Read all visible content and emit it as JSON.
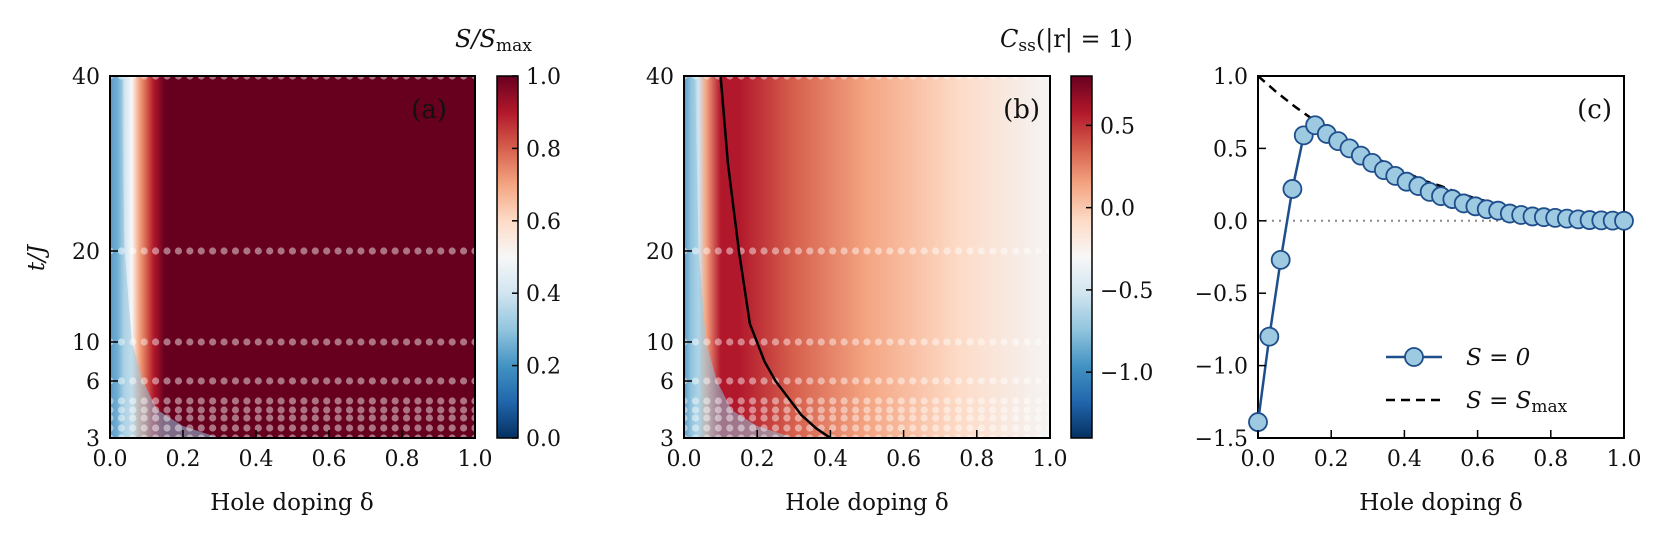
{
  "chart_data": [
    {
      "panel": "(a)",
      "type": "heatmap",
      "xlabel": "Hole doping δ",
      "ylabel": "t/J",
      "xlim": [
        0,
        1
      ],
      "ylim": [
        3,
        40
      ],
      "x_ticks": [
        "0.0",
        "0.2",
        "0.4",
        "0.6",
        "0.8",
        "1.0"
      ],
      "y_ticks": [
        "3",
        "6",
        "10",
        "20",
        "40"
      ],
      "colorbar": {
        "title": "S/S_max",
        "cmap": "RdBu_r",
        "range": [
          0,
          1
        ],
        "ticks": [
          "0.0",
          "0.2",
          "0.4",
          "0.6",
          "0.8",
          "1.0"
        ]
      },
      "sample_rows_tJ": [
        3,
        3.5,
        4,
        4.5,
        5,
        6,
        10,
        20,
        40
      ]
    },
    {
      "panel": "(b)",
      "type": "heatmap",
      "xlabel": "Hole doping δ",
      "ylabel": "",
      "xlim": [
        0,
        1
      ],
      "ylim": [
        3,
        40
      ],
      "x_ticks": [
        "0.0",
        "0.2",
        "0.4",
        "0.6",
        "0.8",
        "1.0"
      ],
      "y_ticks": [
        "3",
        "6",
        "10",
        "20",
        "40"
      ],
      "colorbar": {
        "title": "C_ss(|r| = 1)",
        "cmap": "RdBu_r",
        "range": [
          -1.4,
          0.8
        ],
        "ticks": [
          "0.5",
          "0.0",
          "−0.5",
          "−1.0"
        ]
      },
      "boundary_line": {
        "x": [
          0.4,
          0.36,
          0.32,
          0.25,
          0.22,
          0.18,
          0.15,
          0.12,
          0.1
        ],
        "y": [
          3,
          3.5,
          4.2,
          6,
          8,
          12,
          20,
          30,
          40
        ]
      },
      "sample_rows_tJ": [
        3,
        3.5,
        4,
        4.5,
        5,
        6,
        10,
        20,
        40
      ]
    },
    {
      "panel": "(c)",
      "type": "line",
      "xlabel": "Hole doping δ",
      "ylabel": "",
      "xlim": [
        0,
        1
      ],
      "ylim": [
        -1.5,
        1
      ],
      "x_ticks": [
        "0.0",
        "0.2",
        "0.4",
        "0.6",
        "0.8",
        "1.0"
      ],
      "y_ticks": [
        "1.0",
        "0.5",
        "0.0",
        "−0.5",
        "−1.0",
        "−1.5"
      ],
      "series": [
        {
          "name": "S = 0",
          "style": "solid-markers",
          "color": "#1f4e8c",
          "x": [
            0.0,
            0.031,
            0.062,
            0.094,
            0.125,
            0.156,
            0.188,
            0.219,
            0.25,
            0.281,
            0.312,
            0.344,
            0.375,
            0.406,
            0.438,
            0.469,
            0.5,
            0.531,
            0.562,
            0.594,
            0.625,
            0.656,
            0.688,
            0.719,
            0.75,
            0.781,
            0.812,
            0.844,
            0.875,
            0.906,
            0.938,
            0.969,
            1.0
          ],
          "y": [
            -1.39,
            -0.8,
            -0.27,
            0.22,
            0.59,
            0.66,
            0.6,
            0.55,
            0.5,
            0.45,
            0.4,
            0.35,
            0.31,
            0.27,
            0.24,
            0.2,
            0.17,
            0.15,
            0.12,
            0.1,
            0.08,
            0.07,
            0.05,
            0.04,
            0.03,
            0.025,
            0.02,
            0.015,
            0.01,
            0.005,
            0.003,
            0.001,
            0.0
          ]
        },
        {
          "name": "S = S_max",
          "style": "dashed",
          "color": "#000000",
          "x": [
            0.0,
            0.05,
            0.1,
            0.15,
            0.2,
            0.25,
            0.3,
            0.35,
            0.4,
            0.45,
            0.5,
            0.55,
            0.6,
            0.65,
            0.7,
            0.75,
            0.8,
            0.85,
            0.9,
            0.95,
            1.0
          ],
          "y": [
            1.0,
            0.89,
            0.79,
            0.7,
            0.61,
            0.53,
            0.46,
            0.4,
            0.34,
            0.28,
            0.24,
            0.19,
            0.15,
            0.12,
            0.09,
            0.06,
            0.04,
            0.02,
            0.01,
            0.003,
            0.0
          ]
        }
      ],
      "reference_line_y": 0.0,
      "legend_placement": "lower-right"
    }
  ],
  "labels": {
    "panel_a": "(a)",
    "panel_b": "(b)",
    "panel_c": "(c)",
    "xlabel": "Hole doping δ",
    "ylabel": "t/J",
    "cbar_a_title": "S/S",
    "cbar_a_sub": "max",
    "cbar_b_title": "C",
    "cbar_b_sub": "ss",
    "cbar_b_rest": "(|r| = 1)",
    "legend_s0": "S = 0",
    "legend_smax": "S = S",
    "legend_smax_sub": "max"
  }
}
